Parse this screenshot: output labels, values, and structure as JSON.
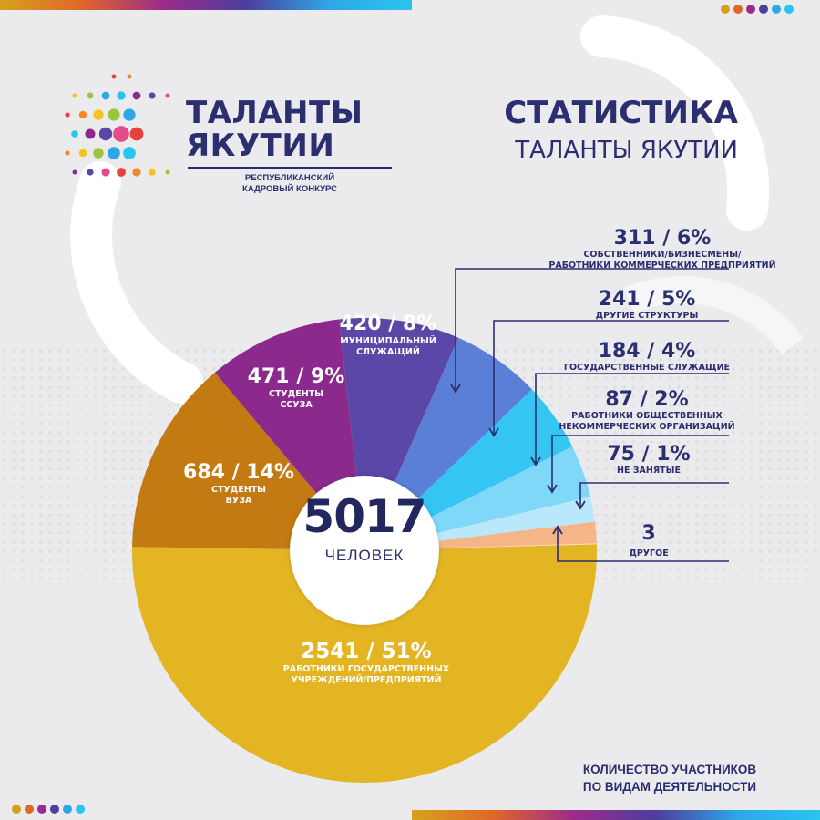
{
  "header": {
    "logo_line1": "ТАЛАНТЫ",
    "logo_line2": "ЯКУТИИ",
    "logo_sub_line1": "РЕСПУБЛИКАНСКИЙ",
    "logo_sub_line2": "КАДРОВЫЙ КОНКУРС",
    "title": "СТАТИСТИКА",
    "subtitle": "ТАЛАНТЫ ЯКУТИИ"
  },
  "center": {
    "total": "5017",
    "unit": "ЧЕЛОВЕК"
  },
  "caption": {
    "line1": "КОЛИЧЕСТВО УЧАСТНИКОВ",
    "line2": "ПО ВИДАМ ДЕЯТЕЛЬНОСТИ"
  },
  "colors": {
    "navy": "#2b2e6f",
    "gold": "#e4b523",
    "brown": "#c47a12",
    "purple": "#8b2a8c",
    "indigo": "#5b47a7",
    "blue": "#5b7fd6",
    "cyan": "#35c5f3",
    "lightblue": "#7fd8f8",
    "paleblue": "#b9e8fb",
    "peach": "#f6b489"
  },
  "corner_dots": [
    "#d6a21c",
    "#e0662a",
    "#9b2b8a",
    "#4b3f9f",
    "#2fa7e6",
    "#2ac4f1"
  ],
  "chart_data": {
    "type": "pie",
    "title": "СТАТИСТИКА",
    "total": 5017,
    "series": [
      {
        "label": "2541 / 51%",
        "desc": [
          "РАБОТНИКИ ГОСУДАРСТВЕННЫХ",
          "УЧРЕЖДЕНИЙ/ПРЕДПРИЯТИЙ"
        ],
        "value": 2541,
        "color": "#e4b523"
      },
      {
        "label": "684 / 14%",
        "desc": [
          "СТУДЕНТЫ",
          "ВУЗА"
        ],
        "value": 684,
        "color": "#c47a12"
      },
      {
        "label": "471 / 9%",
        "desc": [
          "СТУДЕНТЫ",
          "ССУЗА"
        ],
        "value": 471,
        "color": "#8b2a8c"
      },
      {
        "label": "420 / 8%",
        "desc": [
          "МУНИЦИПАЛЬНЫЙ",
          "СЛУЖАЩИЙ"
        ],
        "value": 420,
        "color": "#5b47a7"
      },
      {
        "label": "311 / 6%",
        "desc": [
          "СОБСТВЕННИКИ/БИЗНЕСМЕНЫ/",
          "РАБОТНИКИ КОММЕРЧЕСКИХ ПРЕДПРИЯТИЙ"
        ],
        "value": 311,
        "color": "#5b7fd6"
      },
      {
        "label": "241 / 5%",
        "desc": [
          "ДРУГИЕ СТРУКТУРЫ"
        ],
        "value": 241,
        "color": "#35c5f3"
      },
      {
        "label": "184 / 4%",
        "desc": [
          "ГОСУДАРСТВЕННЫЕ СЛУЖАЩИЕ"
        ],
        "value": 184,
        "color": "#7fd8f8"
      },
      {
        "label": "87 / 2%",
        "desc": [
          "РАБОТНИКИ ОБЩЕСТВЕННЫХ",
          "НЕКОММЕРЧЕСКИХ ОРГАНИЗАЦИЙ"
        ],
        "value": 87,
        "color": "#b9e8fb"
      },
      {
        "label": "75 / 1%",
        "desc": [
          "НЕ ЗАНЯТЫЕ"
        ],
        "value": 75,
        "color": "#f6b489"
      },
      {
        "label": "3",
        "desc": [
          "ДРУГОЕ"
        ],
        "value": 3,
        "color": "#fbd9c0"
      }
    ]
  }
}
